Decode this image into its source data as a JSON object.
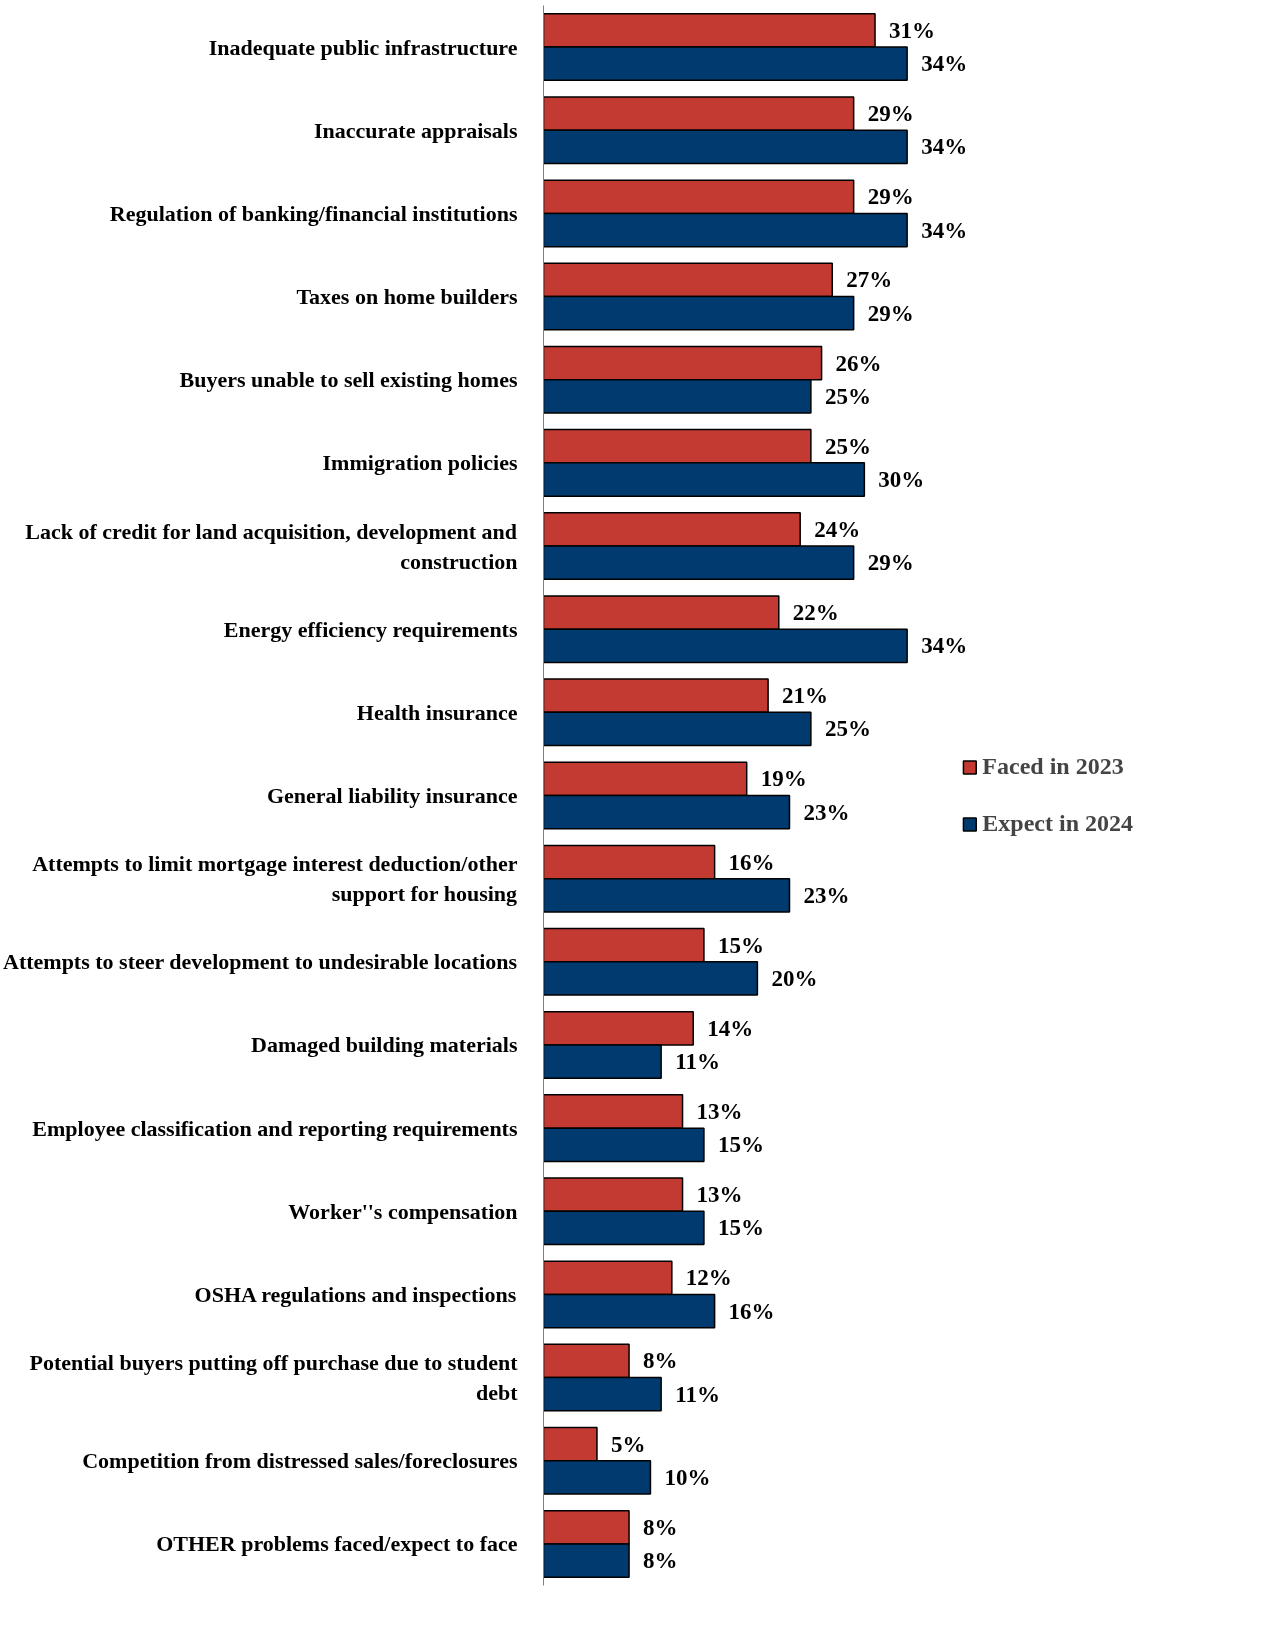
{
  "chart_data": {
    "type": "bar",
    "orientation": "horizontal",
    "categories": [
      "Inadequate public infrastructure",
      "Inaccurate appraisals",
      "Regulation of banking/financial institutions",
      "Taxes on home builders",
      "Buyers unable to sell existing homes",
      "Immigration policies",
      "Lack of credit for land acquisition, development and construction",
      "Energy efficiency requirements",
      "Health insurance",
      "General liability insurance",
      "Attempts to limit mortgage interest deduction/other support for housing",
      "Attempts to steer development to undesirable locations",
      "Damaged building materials",
      "Employee classification and reporting requirements",
      "Worker''s compensation",
      "OSHA regulations and inspections",
      "Potential buyers putting off purchase due to student debt",
      "Competition from distressed sales/foreclosures",
      "OTHER problems faced/expect to face"
    ],
    "series": [
      {
        "name": "Faced in 2023",
        "color": "#c33a32",
        "values": [
          31,
          29,
          29,
          27,
          26,
          25,
          24,
          22,
          21,
          19,
          16,
          15,
          14,
          13,
          13,
          12,
          8,
          5,
          8
        ],
        "value_labels": [
          "31%",
          "29%",
          "29%",
          "27%",
          "26%",
          "25%",
          "24%",
          "22%",
          "21%",
          "19%",
          "16%",
          "15%",
          "14%",
          "13%",
          "13%",
          "12%",
          "8%",
          "5%",
          "8%"
        ]
      },
      {
        "name": "Expect in 2024",
        "color": "#003a6e",
        "values": [
          34,
          34,
          34,
          29,
          25,
          30,
          29,
          34,
          25,
          23,
          23,
          20,
          11,
          15,
          15,
          16,
          11,
          10,
          8
        ],
        "value_labels": [
          "34%",
          "34%",
          "34%",
          "29%",
          "25%",
          "30%",
          "29%",
          "34%",
          "25%",
          "23%",
          "23%",
          "20%",
          "11%",
          "15%",
          "15%",
          "16%",
          "11%",
          "10%",
          "8%"
        ]
      }
    ],
    "tick_labels": "y",
    "legend": "right",
    "grid": false
  }
}
